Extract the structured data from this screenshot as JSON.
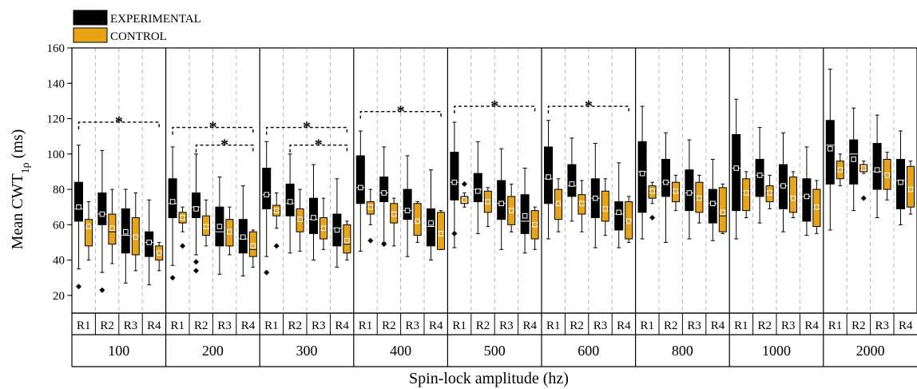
{
  "chart_data": {
    "type": "box",
    "ylabel_main": "Mean CWT",
    "ylabel_sub": "1ρ",
    "ylabel_unit": " (ms)",
    "xlabel": "Spin-lock amplitude (hz)",
    "ylim": [
      10,
      160
    ],
    "yticks": [
      20,
      40,
      60,
      80,
      100,
      120,
      140,
      160
    ],
    "legend": {
      "placement": "top-left",
      "entries": [
        {
          "name": "EXPERIMENTAL",
          "color": "#000000"
        },
        {
          "name": "CONTROL",
          "color": "#E8A317"
        }
      ]
    },
    "colors": {
      "experimental": "#000000",
      "control": "#E8A317",
      "marker": "#ffffff"
    },
    "region_labels": [
      "R1",
      "R2",
      "R3",
      "R4"
    ],
    "groups": [
      {
        "label": "100",
        "significance": [
          {
            "from": 0,
            "to": 3,
            "y": 118,
            "marker": "*"
          }
        ],
        "regions": [
          {
            "exp": {
              "min": 35,
              "q1": 62,
              "median": 69,
              "q3": 84,
              "max": 105,
              "mean": 70,
              "outliers": [
                25
              ]
            },
            "ctrl": {
              "min": 40,
              "q1": 48,
              "median": 60,
              "q3": 63,
              "max": 73,
              "mean": 59,
              "outliers": []
            }
          },
          {
            "exp": {
              "min": 33,
              "q1": 60,
              "median": 66,
              "q3": 78,
              "max": 102,
              "mean": 66,
              "outliers": [
                23
              ]
            },
            "ctrl": {
              "min": 38,
              "q1": 49,
              "median": 56,
              "q3": 66,
              "max": 80,
              "mean": 58,
              "outliers": []
            }
          },
          {
            "exp": {
              "min": 27,
              "q1": 44,
              "median": 54,
              "q3": 69,
              "max": 80,
              "mean": 56,
              "outliers": []
            },
            "ctrl": {
              "min": 34,
              "q1": 43,
              "median": 52,
              "q3": 64,
              "max": 78,
              "mean": 53,
              "outliers": []
            }
          },
          {
            "exp": {
              "min": 26,
              "q1": 42,
              "median": 50,
              "q3": 56,
              "max": 74,
              "mean": 50,
              "outliers": []
            },
            "ctrl": {
              "min": 34,
              "q1": 40,
              "median": 43,
              "q3": 48,
              "max": 50,
              "mean": 44,
              "outliers": []
            }
          }
        ]
      },
      {
        "label": "200",
        "significance": [
          {
            "from": 0,
            "to": 3,
            "y": 115,
            "marker": "*"
          },
          {
            "from": 1,
            "to": 3,
            "y": 105,
            "marker": "*"
          }
        ],
        "regions": [
          {
            "exp": {
              "min": 37,
              "q1": 64,
              "median": 72,
              "q3": 86,
              "max": 104,
              "mean": 73,
              "outliers": [
                30
              ]
            },
            "ctrl": {
              "min": 56,
              "q1": 61,
              "median": 64,
              "q3": 67,
              "max": 70,
              "mean": 64,
              "outliers": [
                48
              ]
            }
          },
          {
            "exp": {
              "min": 43,
              "q1": 64,
              "median": 70,
              "q3": 78,
              "max": 100,
              "mean": 69,
              "outliers": [
                39,
                34
              ]
            },
            "ctrl": {
              "min": 48,
              "q1": 54,
              "median": 59,
              "q3": 65,
              "max": 74,
              "mean": 59,
              "outliers": []
            }
          },
          {
            "exp": {
              "min": 32,
              "q1": 48,
              "median": 56,
              "q3": 70,
              "max": 87,
              "mean": 59,
              "outliers": []
            },
            "ctrl": {
              "min": 43,
              "q1": 48,
              "median": 56,
              "q3": 63,
              "max": 70,
              "mean": 56,
              "outliers": []
            }
          },
          {
            "exp": {
              "min": 31,
              "q1": 44,
              "median": 52,
              "q3": 63,
              "max": 82,
              "mean": 53,
              "outliers": []
            },
            "ctrl": {
              "min": 36,
              "q1": 42,
              "median": 46,
              "q3": 56,
              "max": 57,
              "mean": 48,
              "outliers": []
            }
          }
        ]
      },
      {
        "label": "300",
        "significance": [
          {
            "from": 0,
            "to": 3,
            "y": 115,
            "marker": "*"
          },
          {
            "from": 1,
            "to": 3,
            "y": 105,
            "marker": "*"
          }
        ],
        "regions": [
          {
            "exp": {
              "min": 42,
              "q1": 69,
              "median": 77,
              "q3": 92,
              "max": 107,
              "mean": 77,
              "outliers": [
                33
              ]
            },
            "ctrl": {
              "min": 58,
              "q1": 65,
              "median": 68,
              "q3": 71,
              "max": 78,
              "mean": 68,
              "outliers": [
                48
              ]
            }
          },
          {
            "exp": {
              "min": 44,
              "q1": 65,
              "median": 72,
              "q3": 83,
              "max": 100,
              "mean": 73,
              "outliers": []
            },
            "ctrl": {
              "min": 45,
              "q1": 56,
              "median": 63,
              "q3": 69,
              "max": 80,
              "mean": 63,
              "outliers": []
            }
          },
          {
            "exp": {
              "min": 40,
              "q1": 55,
              "median": 63,
              "q3": 75,
              "max": 94,
              "mean": 64,
              "outliers": []
            },
            "ctrl": {
              "min": 46,
              "q1": 52,
              "median": 58,
              "q3": 64,
              "max": 75,
              "mean": 58,
              "outliers": []
            }
          },
          {
            "exp": {
              "min": 36,
              "q1": 48,
              "median": 58,
              "q3": 66,
              "max": 86,
              "mean": 57,
              "outliers": []
            },
            "ctrl": {
              "min": 40,
              "q1": 44,
              "median": 49,
              "q3": 60,
              "max": 62,
              "mean": 51,
              "outliers": []
            }
          }
        ]
      },
      {
        "label": "400",
        "significance": [
          {
            "from": 0,
            "to": 3,
            "y": 124,
            "marker": "*"
          }
        ],
        "regions": [
          {
            "exp": {
              "min": 45,
              "q1": 72,
              "median": 81,
              "q3": 99,
              "max": 113,
              "mean": 81,
              "outliers": []
            },
            "ctrl": {
              "min": 60,
              "q1": 66,
              "median": 70,
              "q3": 73,
              "max": 80,
              "mean": 70,
              "outliers": [
                51
              ]
            }
          },
          {
            "exp": {
              "min": 50,
              "q1": 73,
              "median": 78,
              "q3": 87,
              "max": 104,
              "mean": 78,
              "outliers": [
                49
              ]
            },
            "ctrl": {
              "min": 48,
              "q1": 61,
              "median": 66,
              "q3": 72,
              "max": 75,
              "mean": 66,
              "outliers": []
            }
          },
          {
            "exp": {
              "min": 42,
              "q1": 63,
              "median": 68,
              "q3": 80,
              "max": 99,
              "mean": 68,
              "outliers": []
            },
            "ctrl": {
              "min": 50,
              "q1": 54,
              "median": 63,
              "q3": 72,
              "max": 73,
              "mean": 62,
              "outliers": []
            }
          },
          {
            "exp": {
              "min": 40,
              "q1": 48,
              "median": 59,
              "q3": 69,
              "max": 91,
              "mean": 61,
              "outliers": []
            },
            "ctrl": {
              "min": 46,
              "q1": 46,
              "median": 55,
              "q3": 67,
              "max": 68,
              "mean": 55,
              "outliers": []
            }
          }
        ]
      },
      {
        "label": "500",
        "significance": [
          {
            "from": 0,
            "to": 3,
            "y": 127,
            "marker": "*"
          }
        ],
        "regions": [
          {
            "exp": {
              "min": 47,
              "q1": 74,
              "median": 84,
              "q3": 101,
              "max": 118,
              "mean": 84,
              "outliers": [
                55
              ]
            },
            "ctrl": {
              "min": 70,
              "q1": 72,
              "median": 75,
              "q3": 76,
              "max": 78,
              "mean": 74,
              "outliers": [
                83
              ]
            }
          },
          {
            "exp": {
              "min": 55,
              "q1": 73,
              "median": 80,
              "q3": 89,
              "max": 107,
              "mean": 79,
              "outliers": []
            },
            "ctrl": {
              "min": 59,
              "q1": 67,
              "median": 73,
              "q3": 79,
              "max": 81,
              "mean": 73,
              "outliers": []
            }
          },
          {
            "exp": {
              "min": 46,
              "q1": 63,
              "median": 72,
              "q3": 85,
              "max": 103,
              "mean": 72,
              "outliers": []
            },
            "ctrl": {
              "min": 56,
              "q1": 60,
              "median": 67,
              "q3": 76,
              "max": 83,
              "mean": 68,
              "outliers": []
            }
          },
          {
            "exp": {
              "min": 44,
              "q1": 55,
              "median": 62,
              "q3": 77,
              "max": 92,
              "mean": 65,
              "outliers": []
            },
            "ctrl": {
              "min": 46,
              "q1": 52,
              "median": 60,
              "q3": 68,
              "max": 70,
              "mean": 60,
              "outliers": []
            }
          }
        ]
      },
      {
        "label": "600",
        "significance": [
          {
            "from": 0,
            "to": 3,
            "y": 127,
            "marker": "*"
          }
        ],
        "regions": [
          {
            "exp": {
              "min": 52,
              "q1": 72,
              "median": 86,
              "q3": 104,
              "max": 119,
              "mean": 87,
              "outliers": []
            },
            "ctrl": {
              "min": 56,
              "q1": 63,
              "median": 73,
              "q3": 80,
              "max": 86,
              "mean": 72,
              "outliers": []
            }
          },
          {
            "exp": {
              "min": 62,
              "q1": 76,
              "median": 82,
              "q3": 94,
              "max": 109,
              "mean": 83,
              "outliers": []
            },
            "ctrl": {
              "min": 56,
              "q1": 66,
              "median": 72,
              "q3": 77,
              "max": 85,
              "mean": 72,
              "outliers": []
            }
          },
          {
            "exp": {
              "min": 47,
              "q1": 64,
              "median": 75,
              "q3": 86,
              "max": 106,
              "mean": 75,
              "outliers": []
            },
            "ctrl": {
              "min": 54,
              "q1": 62,
              "median": 69,
              "q3": 79,
              "max": 86,
              "mean": 69,
              "outliers": []
            }
          },
          {
            "exp": {
              "min": 47,
              "q1": 57,
              "median": 66,
              "q3": 73,
              "max": 95,
              "mean": 67,
              "outliers": []
            },
            "ctrl": {
              "min": 50,
              "q1": 52,
              "median": 61,
              "q3": 73,
              "max": 76,
              "mean": 62,
              "outliers": []
            }
          }
        ]
      },
      {
        "label": "800",
        "significance": [],
        "regions": [
          {
            "exp": {
              "min": 52,
              "q1": 67,
              "median": 90,
              "q3": 107,
              "max": 127,
              "mean": 89,
              "outliers": []
            },
            "ctrl": {
              "min": 72,
              "q1": 75,
              "median": 79,
              "q3": 82,
              "max": 84,
              "mean": 79,
              "outliers": [
                64
              ]
            }
          },
          {
            "exp": {
              "min": 50,
              "q1": 76,
              "median": 84,
              "q3": 97,
              "max": 112,
              "mean": 84,
              "outliers": []
            },
            "ctrl": {
              "min": 68,
              "q1": 73,
              "median": 79,
              "q3": 84,
              "max": 88,
              "mean": 79,
              "outliers": []
            }
          },
          {
            "exp": {
              "min": 52,
              "q1": 68,
              "median": 78,
              "q3": 91,
              "max": 108,
              "mean": 78,
              "outliers": []
            },
            "ctrl": {
              "min": 61,
              "q1": 67,
              "median": 75,
              "q3": 84,
              "max": 88,
              "mean": 75,
              "outliers": []
            }
          },
          {
            "exp": {
              "min": 51,
              "q1": 61,
              "median": 72,
              "q3": 80,
              "max": 97,
              "mean": 72,
              "outliers": []
            },
            "ctrl": {
              "min": 55,
              "q1": 56,
              "median": 65,
              "q3": 81,
              "max": 83,
              "mean": 67,
              "outliers": []
            }
          }
        ]
      },
      {
        "label": "1000",
        "significance": [],
        "regions": [
          {
            "exp": {
              "min": 52,
              "q1": 68,
              "median": 92,
              "q3": 111,
              "max": 131,
              "mean": 92,
              "outliers": []
            },
            "ctrl": {
              "min": 64,
              "q1": 68,
              "median": 78,
              "q3": 86,
              "max": 90,
              "mean": 78,
              "outliers": []
            }
          },
          {
            "exp": {
              "min": 61,
              "q1": 76,
              "median": 88,
              "q3": 97,
              "max": 115,
              "mean": 88,
              "outliers": []
            },
            "ctrl": {
              "min": 69,
              "q1": 73,
              "median": 78,
              "q3": 82,
              "max": 88,
              "mean": 78,
              "outliers": []
            }
          },
          {
            "exp": {
              "min": 56,
              "q1": 69,
              "median": 82,
              "q3": 94,
              "max": 112,
              "mean": 82,
              "outliers": []
            },
            "ctrl": {
              "min": 64,
              "q1": 67,
              "median": 74,
              "q3": 87,
              "max": 90,
              "mean": 75,
              "outliers": []
            }
          },
          {
            "exp": {
              "min": 54,
              "q1": 62,
              "median": 76,
              "q3": 86,
              "max": 104,
              "mean": 76,
              "outliers": []
            },
            "ctrl": {
              "min": 55,
              "q1": 59,
              "median": 70,
              "q3": 80,
              "max": 85,
              "mean": 70,
              "outliers": []
            }
          }
        ]
      },
      {
        "label": "2000",
        "significance": [],
        "regions": [
          {
            "exp": {
              "min": 57,
              "q1": 83,
              "median": 105,
              "q3": 119,
              "max": 148,
              "mean": 103,
              "outliers": []
            },
            "ctrl": {
              "min": 82,
              "q1": 86,
              "median": 91,
              "q3": 96,
              "max": 100,
              "mean": 91,
              "outliers": []
            }
          },
          {
            "exp": {
              "min": 68,
              "q1": 83,
              "median": 100,
              "q3": 108,
              "max": 126,
              "mean": 97,
              "outliers": []
            },
            "ctrl": {
              "min": 89,
              "q1": 90,
              "median": 92,
              "q3": 94,
              "max": 96,
              "mean": 92,
              "outliers": [
                75
              ]
            }
          },
          {
            "exp": {
              "min": 64,
              "q1": 80,
              "median": 90,
              "q3": 106,
              "max": 122,
              "mean": 91,
              "outliers": []
            },
            "ctrl": {
              "min": 74,
              "q1": 80,
              "median": 87,
              "q3": 97,
              "max": 101,
              "mean": 88,
              "outliers": []
            }
          },
          {
            "exp": {
              "min": 60,
              "q1": 69,
              "median": 85,
              "q3": 97,
              "max": 113,
              "mean": 84,
              "outliers": []
            },
            "ctrl": {
              "min": 66,
              "q1": 70,
              "median": 80,
              "q3": 93,
              "max": 96,
              "mean": 80,
              "outliers": []
            }
          }
        ]
      }
    ]
  }
}
